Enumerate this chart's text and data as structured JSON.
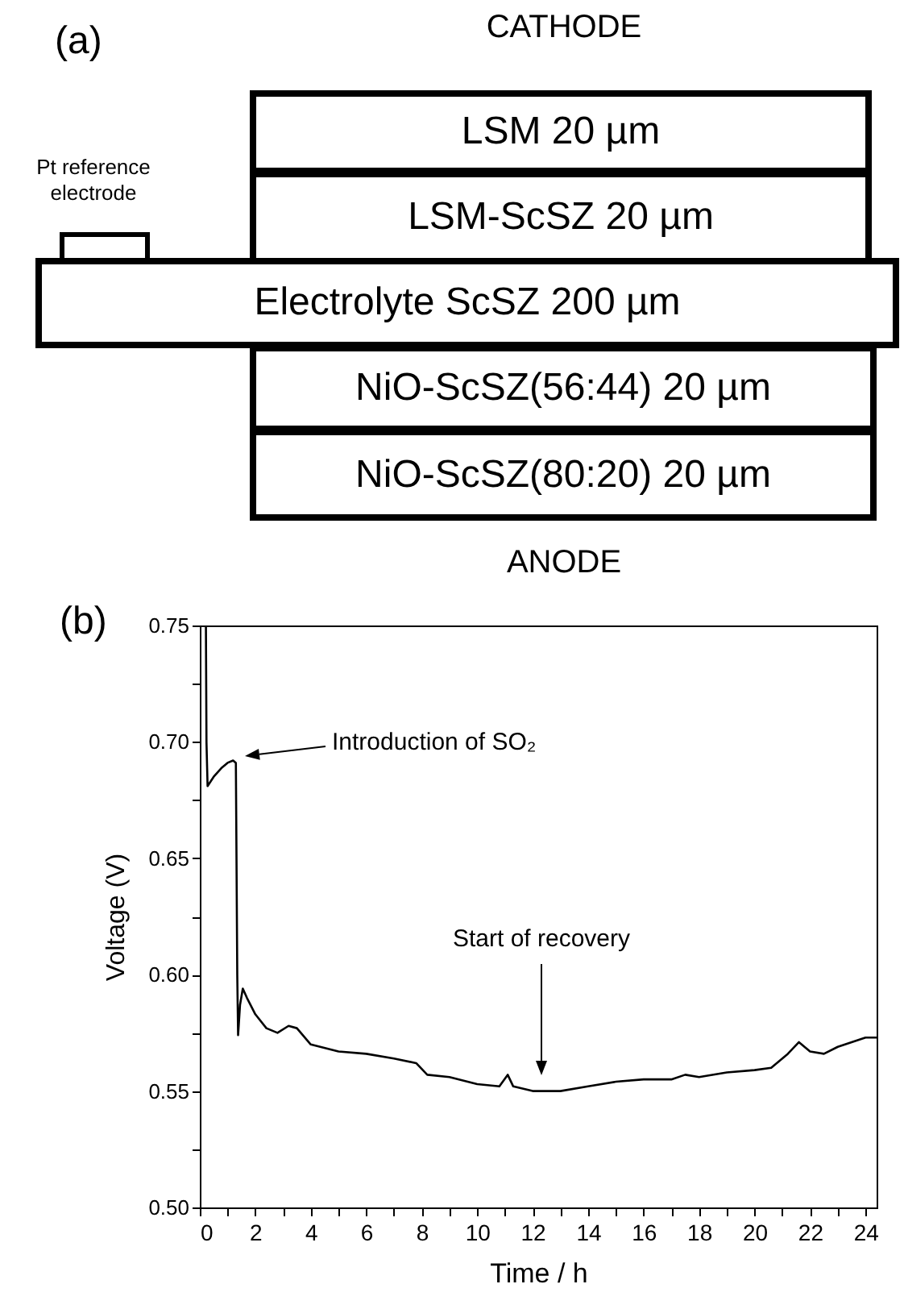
{
  "chart_data": [
    {
      "type": "other",
      "annotations": [
        "(a)",
        "CATHODE",
        "Pt reference electrode",
        "LSM 20 µm",
        "LSM-ScSZ 20 µm",
        "Electrolyte ScSZ 200 µm",
        "NiO-ScSZ(56:44) 20 µm",
        "NiO-ScSZ(80:20) 20 µm",
        "ANODE"
      ]
    },
    {
      "type": "line",
      "xlabel": "Time / h",
      "ylabel": "Voltage (V)",
      "xlim": [
        0,
        24.4
      ],
      "xticks": [
        0,
        {
          "value": 1,
          "label": null
        },
        2,
        {
          "value": 3,
          "label": null
        },
        4,
        {
          "value": 5,
          "label": null
        },
        6,
        {
          "value": 7,
          "label": null
        },
        8,
        {
          "value": 9,
          "label": null
        },
        10,
        {
          "value": 11,
          "label": null
        },
        12,
        {
          "value": 13,
          "label": null
        },
        14,
        {
          "value": 15,
          "label": null
        },
        16,
        {
          "value": 17,
          "label": null
        },
        18,
        {
          "value": 19,
          "label": null
        },
        20,
        {
          "value": 21,
          "label": null
        },
        22,
        {
          "value": 23,
          "label": null
        },
        24
      ],
      "ylim": [
        0.5,
        0.75
      ],
      "yticks": [
        {
          "value": 0.5,
          "label": "0.50"
        },
        {
          "value": 0.525,
          "label": null
        },
        {
          "value": 0.55,
          "label": "0.55"
        },
        {
          "value": 0.575,
          "label": null
        },
        {
          "value": 0.6,
          "label": "0.60"
        },
        {
          "value": 0.625,
          "label": null
        },
        {
          "value": 0.65,
          "label": "0.65"
        },
        {
          "value": 0.675,
          "label": null
        },
        {
          "value": 0.7,
          "label": "0.70"
        },
        {
          "value": 0.725,
          "label": null
        },
        {
          "value": 0.75,
          "label": "0.75"
        }
      ],
      "grid": false,
      "x": [
        0.22,
        0.24,
        0.28,
        0.5,
        0.8,
        1.0,
        1.2,
        1.3,
        1.35,
        1.38,
        1.45,
        1.55,
        1.7,
        2.0,
        2.4,
        2.8,
        3.2,
        3.5,
        4.0,
        5,
        6,
        7,
        7.8,
        8.2,
        9,
        10,
        10.8,
        11.1,
        11.3,
        12,
        13,
        14,
        15,
        16,
        17,
        17.5,
        18,
        19,
        20,
        20.6,
        21.2,
        21.6,
        22,
        22.5,
        23,
        23.5,
        24,
        24.4
      ],
      "series": [
        {
          "color": "#000000",
          "values": [
            0.75,
            0.7,
            0.681,
            0.685,
            0.689,
            0.691,
            0.692,
            0.691,
            0.6,
            0.574,
            0.587,
            0.594,
            0.59,
            0.583,
            0.577,
            0.575,
            0.578,
            0.577,
            0.57,
            0.567,
            0.566,
            0.564,
            0.562,
            0.557,
            0.556,
            0.553,
            0.552,
            0.557,
            0.552,
            0.55,
            0.55,
            0.552,
            0.554,
            0.555,
            0.555,
            0.557,
            0.556,
            0.558,
            0.559,
            0.56,
            0.566,
            0.571,
            0.567,
            0.566,
            0.569,
            0.571,
            0.573,
            0.573
          ]
        }
      ],
      "annotations": [
        "(b)",
        "Introduction of SO₂",
        "Start of recovery"
      ]
    }
  ]
}
